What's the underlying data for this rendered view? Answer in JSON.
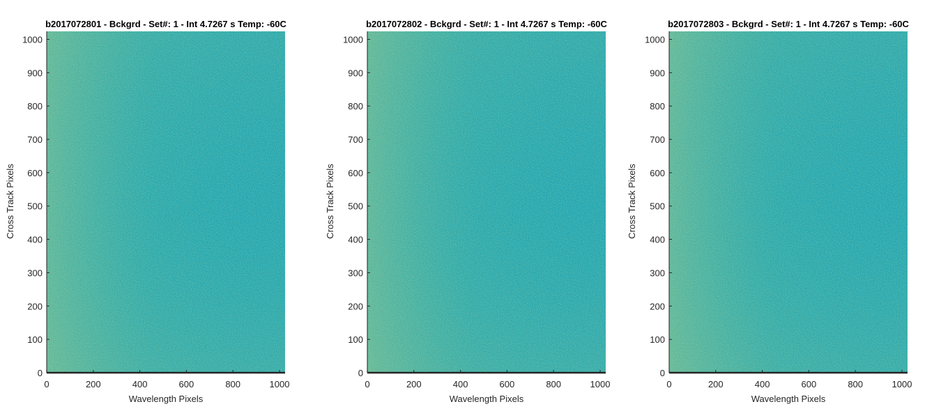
{
  "chart_data": [
    {
      "type": "heatmap",
      "title": "b2017072801 - Bckgrd - Set#: 1 - Int 4.7267 s Temp: -60C",
      "xlabel": "Wavelength Pixels",
      "ylabel": "Cross Track Pixels",
      "xlim": [
        0,
        1024
      ],
      "ylim": [
        0,
        1024
      ],
      "xticks": [
        0,
        200,
        400,
        600,
        800,
        1000
      ],
      "yticks": [
        0,
        100,
        200,
        300,
        400,
        500,
        600,
        700,
        800,
        900,
        1000
      ],
      "colormap": "parula",
      "colors": {
        "low": "#1fa5b3",
        "mid": "#3fb0a0",
        "high": "#8cc48a"
      },
      "gradient_note": "noisy background frame, brighter toward low wavelength pixels",
      "grid": false
    },
    {
      "type": "heatmap",
      "title": "b2017072802 - Bckgrd - Set#: 1 - Int 4.7267 s Temp: -60C",
      "xlabel": "Wavelength Pixels",
      "ylabel": "Cross Track Pixels",
      "xlim": [
        0,
        1024
      ],
      "ylim": [
        0,
        1024
      ],
      "xticks": [
        0,
        200,
        400,
        600,
        800,
        1000
      ],
      "yticks": [
        0,
        100,
        200,
        300,
        400,
        500,
        600,
        700,
        800,
        900,
        1000
      ],
      "colormap": "parula",
      "colors": {
        "low": "#1fa5b3",
        "mid": "#3fb0a0",
        "high": "#8cc48a"
      },
      "gradient_note": "noisy background frame, brighter toward low wavelength pixels",
      "grid": false
    },
    {
      "type": "heatmap",
      "title": "b2017072803 - Bckgrd - Set#: 1 - Int 4.7267 s Temp: -60C",
      "xlabel": "Wavelength Pixels",
      "ylabel": "Cross Track Pixels",
      "xlim": [
        0,
        1024
      ],
      "ylim": [
        0,
        1024
      ],
      "xticks": [
        0,
        200,
        400,
        600,
        800,
        1000
      ],
      "yticks": [
        0,
        100,
        200,
        300,
        400,
        500,
        600,
        700,
        800,
        900,
        1000
      ],
      "colormap": "parula",
      "colors": {
        "low": "#1fa5b3",
        "mid": "#3fb0a0",
        "high": "#8cc48a"
      },
      "gradient_note": "noisy background frame, brighter toward low wavelength pixels",
      "grid": false
    }
  ]
}
